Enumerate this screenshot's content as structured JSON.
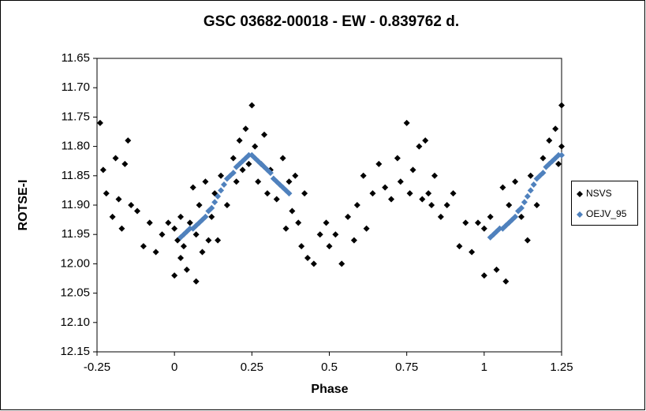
{
  "chart_data": {
    "type": "scatter",
    "title": "GSC 03682-00018  - EW - 0.839762 d.",
    "x_label": "Phase",
    "y_label": "ROTSE-I",
    "xlim": [
      -0.25,
      1.25
    ],
    "xticks": [
      -0.25,
      0,
      0.25,
      0.5,
      0.75,
      1,
      1.25
    ],
    "ylim": [
      12.15,
      11.65
    ],
    "yticks": [
      {
        "value": 12.15,
        "label": "12.15"
      },
      {
        "value": 12.1,
        "label": "12.10"
      },
      {
        "value": 12.05,
        "label": "12.05"
      },
      {
        "value": 12.0,
        "label": "12.00"
      },
      {
        "value": 11.95,
        "label": "11.95"
      },
      {
        "value": 11.9,
        "label": "11.90"
      },
      {
        "value": 11.85,
        "label": "11.85"
      },
      {
        "value": 11.8,
        "label": "11.80"
      },
      {
        "value": 11.75,
        "label": "11.75"
      },
      {
        "value": 11.7,
        "label": "11.70"
      },
      {
        "value": 11.65,
        "label": "11.65"
      }
    ],
    "legend": "right",
    "series": [
      {
        "name": "NSVS",
        "color": "#000000",
        "marker": "diamond",
        "x": [
          0.0,
          0.0,
          0.01,
          0.02,
          0.02,
          0.03,
          0.04,
          0.05,
          0.06,
          0.07,
          0.07,
          0.08,
          0.09,
          0.1,
          0.11,
          0.12,
          0.13,
          0.14,
          0.15,
          0.17,
          0.19,
          0.2,
          0.21,
          0.22,
          0.23,
          0.24,
          0.25,
          0.26,
          0.27,
          0.28,
          0.29,
          0.3,
          0.31,
          0.33,
          0.35,
          0.36,
          0.37,
          0.38,
          0.39,
          0.4,
          0.41,
          0.42,
          0.43,
          0.45,
          0.47,
          0.49,
          0.5,
          0.52,
          0.54,
          0.56,
          0.58,
          0.59,
          0.61,
          0.62,
          0.64,
          0.66,
          0.68,
          0.7,
          0.72,
          0.73,
          0.75,
          0.76,
          0.77,
          0.79,
          0.8,
          0.81,
          0.82,
          0.83,
          0.84,
          0.86,
          0.88,
          0.9,
          0.92,
          0.94,
          0.96,
          0.98,
          -0.24,
          -0.23,
          -0.22,
          -0.2,
          -0.19,
          -0.18,
          -0.17,
          -0.16,
          -0.15,
          -0.14,
          -0.12,
          -0.1,
          -0.08,
          -0.06,
          -0.04,
          -0.02,
          1.0,
          1.0,
          1.02,
          1.04,
          1.06,
          1.07,
          1.08,
          1.1,
          1.12,
          1.14,
          1.15,
          1.17,
          1.19,
          1.21,
          1.23,
          1.24,
          1.25,
          1.25
        ],
        "values": [
          11.94,
          12.02,
          11.96,
          11.92,
          11.99,
          11.97,
          12.01,
          11.93,
          11.87,
          12.03,
          11.95,
          11.9,
          11.98,
          11.86,
          11.96,
          11.92,
          11.88,
          11.96,
          11.85,
          11.9,
          11.82,
          11.86,
          11.79,
          11.84,
          11.77,
          11.83,
          11.73,
          11.8,
          11.86,
          11.83,
          11.78,
          11.88,
          11.84,
          11.89,
          11.82,
          11.94,
          11.86,
          11.91,
          11.85,
          11.93,
          11.97,
          11.88,
          11.99,
          12.0,
          11.95,
          11.93,
          11.97,
          11.95,
          12.0,
          11.92,
          11.96,
          11.9,
          11.85,
          11.94,
          11.88,
          11.83,
          11.87,
          11.89,
          11.82,
          11.86,
          11.76,
          11.88,
          11.84,
          11.8,
          11.89,
          11.79,
          11.88,
          11.9,
          11.85,
          11.92,
          11.9,
          11.88,
          11.97,
          11.93,
          11.98,
          11.93,
          11.76,
          11.84,
          11.88,
          11.92,
          11.82,
          11.89,
          11.94,
          11.83,
          11.79,
          11.9,
          11.91,
          11.97,
          11.93,
          11.98,
          11.95,
          11.93,
          11.94,
          12.02,
          11.92,
          12.01,
          11.87,
          12.03,
          11.9,
          11.86,
          11.92,
          11.96,
          11.85,
          11.9,
          11.82,
          11.79,
          11.77,
          11.83,
          11.73,
          11.8
        ]
      },
      {
        "name": "OEJV_95",
        "color": "#4f81bd",
        "marker": "diamond",
        "x": [
          0.02,
          0.03,
          0.04,
          0.05,
          0.06,
          0.07,
          0.08,
          0.09,
          0.1,
          0.11,
          0.12,
          0.13,
          0.14,
          0.15,
          0.16,
          0.17,
          0.18,
          0.19,
          0.2,
          0.21,
          0.22,
          0.23,
          0.24,
          0.25,
          0.26,
          0.27,
          0.28,
          0.29,
          0.3,
          0.31,
          0.32,
          0.33,
          0.34,
          0.35,
          0.36,
          0.37,
          1.02,
          1.03,
          1.04,
          1.05,
          1.06,
          1.07,
          1.08,
          1.09,
          1.1,
          1.11,
          1.12,
          1.13,
          1.14,
          1.15,
          1.16,
          1.17,
          1.18,
          1.19,
          1.2,
          1.21,
          1.22,
          1.23,
          1.24,
          1.25
        ],
        "values": [
          11.955,
          11.95,
          11.945,
          11.94,
          11.94,
          11.935,
          11.93,
          11.925,
          11.92,
          11.91,
          11.905,
          11.895,
          11.885,
          11.875,
          11.865,
          11.855,
          11.85,
          11.845,
          11.835,
          11.83,
          11.825,
          11.82,
          11.815,
          11.815,
          11.82,
          11.825,
          11.83,
          11.835,
          11.84,
          11.845,
          11.855,
          11.86,
          11.865,
          11.87,
          11.875,
          11.88,
          11.955,
          11.95,
          11.945,
          11.94,
          11.94,
          11.935,
          11.93,
          11.925,
          11.92,
          11.91,
          11.905,
          11.895,
          11.885,
          11.875,
          11.865,
          11.855,
          11.85,
          11.845,
          11.835,
          11.83,
          11.825,
          11.82,
          11.815,
          11.815
        ]
      }
    ]
  }
}
